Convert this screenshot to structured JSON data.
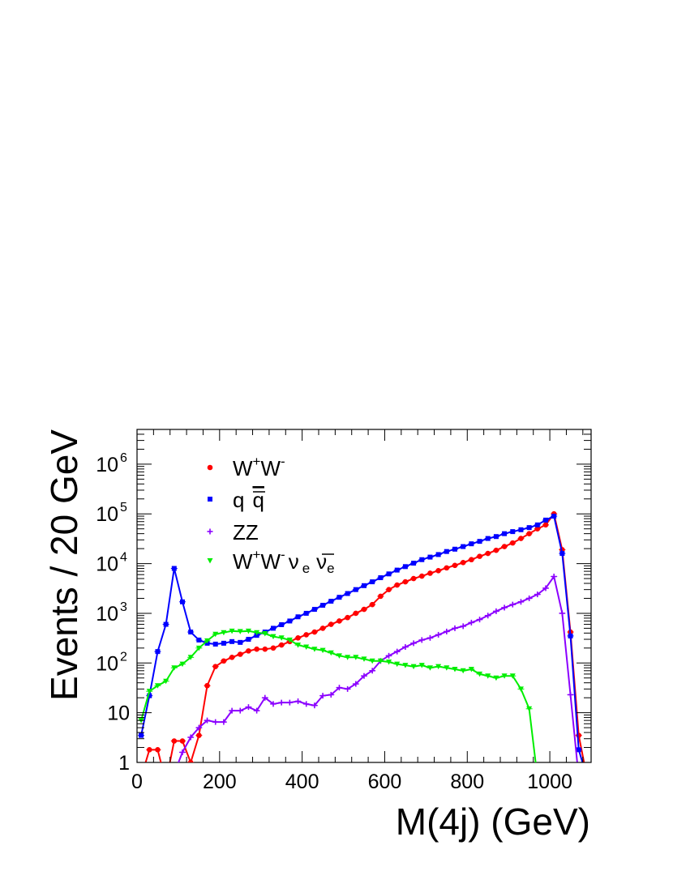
{
  "chart_data": {
    "type": "line",
    "xlabel": "M(4j) (GeV)",
    "ylabel": "Events / 20 GeV",
    "xlim": [
      0,
      1100
    ],
    "ylim": [
      1,
      5000000
    ],
    "yscale": "log",
    "grid": false,
    "legend_position": "top-left",
    "x_ticks": [
      "0",
      "200",
      "400",
      "600",
      "800",
      "1000"
    ],
    "y_ticks": [
      {
        "base": "1",
        "exp": ""
      },
      {
        "base": "10",
        "exp": ""
      },
      {
        "base": "10",
        "exp": "2"
      },
      {
        "base": "10",
        "exp": "3"
      },
      {
        "base": "10",
        "exp": "4"
      },
      {
        "base": "10",
        "exp": "5"
      },
      {
        "base": "10",
        "exp": "6"
      }
    ],
    "series": [
      {
        "name": "W+W-",
        "legend": {
          "main": "W",
          "sup1": "+",
          "mid": "W",
          "sup2": "-"
        },
        "color": "#ff0000",
        "marker": "circle",
        "points": [
          [
            10,
            0.5
          ],
          [
            30,
            1.8
          ],
          [
            50,
            1.8
          ],
          [
            70,
            0.4
          ],
          [
            90,
            2.7
          ],
          [
            110,
            2.7
          ],
          [
            130,
            1.0
          ],
          [
            150,
            3.5
          ],
          [
            170,
            35
          ],
          [
            190,
            85
          ],
          [
            210,
            110
          ],
          [
            230,
            130
          ],
          [
            250,
            150
          ],
          [
            270,
            175
          ],
          [
            290,
            190
          ],
          [
            310,
            190
          ],
          [
            330,
            200
          ],
          [
            350,
            230
          ],
          [
            370,
            270
          ],
          [
            390,
            320
          ],
          [
            410,
            370
          ],
          [
            430,
            420
          ],
          [
            450,
            500
          ],
          [
            470,
            600
          ],
          [
            490,
            700
          ],
          [
            510,
            820
          ],
          [
            530,
            1000
          ],
          [
            550,
            1200
          ],
          [
            570,
            1500
          ],
          [
            590,
            2200
          ],
          [
            610,
            3000
          ],
          [
            630,
            3700
          ],
          [
            650,
            4300
          ],
          [
            670,
            5000
          ],
          [
            690,
            5600
          ],
          [
            710,
            6400
          ],
          [
            730,
            7200
          ],
          [
            750,
            8200
          ],
          [
            770,
            9200
          ],
          [
            790,
            10500
          ],
          [
            810,
            12000
          ],
          [
            830,
            14000
          ],
          [
            850,
            16000
          ],
          [
            870,
            18500
          ],
          [
            890,
            22000
          ],
          [
            910,
            26000
          ],
          [
            930,
            32000
          ],
          [
            950,
            40000
          ],
          [
            970,
            50000
          ],
          [
            990,
            60000
          ],
          [
            1010,
            100000
          ],
          [
            1030,
            19000
          ],
          [
            1050,
            420
          ],
          [
            1070,
            3.5
          ],
          [
            1090,
            0.5
          ]
        ]
      },
      {
        "name": "q q̄",
        "legend": {
          "main": "q",
          "bar": "q"
        },
        "color": "#0000ff",
        "marker": "square",
        "points": [
          [
            10,
            3.5
          ],
          [
            30,
            22
          ],
          [
            50,
            170
          ],
          [
            70,
            600
          ],
          [
            90,
            8000
          ],
          [
            110,
            1700
          ],
          [
            130,
            420
          ],
          [
            150,
            290
          ],
          [
            170,
            250
          ],
          [
            190,
            240
          ],
          [
            210,
            250
          ],
          [
            230,
            270
          ],
          [
            250,
            260
          ],
          [
            270,
            300
          ],
          [
            290,
            360
          ],
          [
            310,
            420
          ],
          [
            330,
            500
          ],
          [
            350,
            590
          ],
          [
            370,
            700
          ],
          [
            390,
            850
          ],
          [
            410,
            1000
          ],
          [
            430,
            1200
          ],
          [
            450,
            1450
          ],
          [
            470,
            1750
          ],
          [
            490,
            2100
          ],
          [
            510,
            2500
          ],
          [
            530,
            3000
          ],
          [
            550,
            3600
          ],
          [
            570,
            4300
          ],
          [
            590,
            5200
          ],
          [
            610,
            6200
          ],
          [
            630,
            7400
          ],
          [
            650,
            8700
          ],
          [
            670,
            10200
          ],
          [
            690,
            12000
          ],
          [
            710,
            13500
          ],
          [
            730,
            15200
          ],
          [
            750,
            17500
          ],
          [
            770,
            19500
          ],
          [
            790,
            22000
          ],
          [
            810,
            25000
          ],
          [
            830,
            28000
          ],
          [
            850,
            32000
          ],
          [
            870,
            35000
          ],
          [
            890,
            40000
          ],
          [
            910,
            44000
          ],
          [
            930,
            48000
          ],
          [
            950,
            53000
          ],
          [
            970,
            60000
          ],
          [
            990,
            75000
          ],
          [
            1010,
            90000
          ],
          [
            1030,
            16000
          ],
          [
            1050,
            350
          ],
          [
            1070,
            1.8
          ],
          [
            1090,
            0.5
          ]
        ]
      },
      {
        "name": "ZZ",
        "legend": {
          "main": "ZZ"
        },
        "color": "#8b00ff",
        "marker": "cross",
        "points": [
          [
            90,
            0.6
          ],
          [
            110,
            1.6
          ],
          [
            130,
            3.2
          ],
          [
            150,
            5
          ],
          [
            170,
            7
          ],
          [
            190,
            6.5
          ],
          [
            210,
            6.5
          ],
          [
            230,
            11
          ],
          [
            250,
            11
          ],
          [
            270,
            13
          ],
          [
            290,
            11
          ],
          [
            310,
            20
          ],
          [
            330,
            15
          ],
          [
            350,
            16
          ],
          [
            370,
            16
          ],
          [
            390,
            17
          ],
          [
            410,
            15
          ],
          [
            430,
            14
          ],
          [
            450,
            22
          ],
          [
            470,
            23
          ],
          [
            490,
            32
          ],
          [
            510,
            30
          ],
          [
            530,
            38
          ],
          [
            550,
            55
          ],
          [
            570,
            70
          ],
          [
            590,
            110
          ],
          [
            610,
            140
          ],
          [
            630,
            170
          ],
          [
            650,
            210
          ],
          [
            670,
            250
          ],
          [
            690,
            290
          ],
          [
            710,
            320
          ],
          [
            730,
            370
          ],
          [
            750,
            430
          ],
          [
            770,
            500
          ],
          [
            790,
            550
          ],
          [
            810,
            650
          ],
          [
            830,
            750
          ],
          [
            850,
            900
          ],
          [
            870,
            1100
          ],
          [
            890,
            1300
          ],
          [
            910,
            1500
          ],
          [
            930,
            1700
          ],
          [
            950,
            2000
          ],
          [
            970,
            2400
          ],
          [
            990,
            3200
          ],
          [
            1010,
            5500
          ],
          [
            1030,
            1000
          ],
          [
            1050,
            23
          ],
          [
            1070,
            0.5
          ]
        ]
      },
      {
        "name": "W+W-νe ν̄e",
        "legend": {
          "main": "W",
          "sup1": "+",
          "mid": "W",
          "sup2": "-",
          "nu": "ν",
          "sub1": "e",
          "nubar": "ν",
          "sub2": "e"
        },
        "color": "#00ee00",
        "marker": "triangle",
        "points": [
          [
            10,
            7
          ],
          [
            30,
            27
          ],
          [
            50,
            35
          ],
          [
            70,
            43
          ],
          [
            90,
            80
          ],
          [
            110,
            95
          ],
          [
            130,
            130
          ],
          [
            150,
            200
          ],
          [
            170,
            280
          ],
          [
            190,
            380
          ],
          [
            210,
            410
          ],
          [
            230,
            440
          ],
          [
            250,
            430
          ],
          [
            270,
            440
          ],
          [
            290,
            410
          ],
          [
            310,
            390
          ],
          [
            330,
            340
          ],
          [
            350,
            320
          ],
          [
            370,
            290
          ],
          [
            390,
            230
          ],
          [
            410,
            210
          ],
          [
            430,
            190
          ],
          [
            450,
            180
          ],
          [
            470,
            160
          ],
          [
            490,
            140
          ],
          [
            510,
            130
          ],
          [
            530,
            130
          ],
          [
            550,
            120
          ],
          [
            570,
            110
          ],
          [
            590,
            110
          ],
          [
            610,
            105
          ],
          [
            630,
            95
          ],
          [
            650,
            90
          ],
          [
            670,
            85
          ],
          [
            690,
            90
          ],
          [
            710,
            80
          ],
          [
            730,
            85
          ],
          [
            750,
            80
          ],
          [
            770,
            75
          ],
          [
            790,
            70
          ],
          [
            810,
            75
          ],
          [
            830,
            60
          ],
          [
            850,
            55
          ],
          [
            870,
            50
          ],
          [
            890,
            55
          ],
          [
            910,
            55
          ],
          [
            930,
            30
          ],
          [
            950,
            12
          ],
          [
            970,
            0.5
          ]
        ]
      }
    ]
  }
}
